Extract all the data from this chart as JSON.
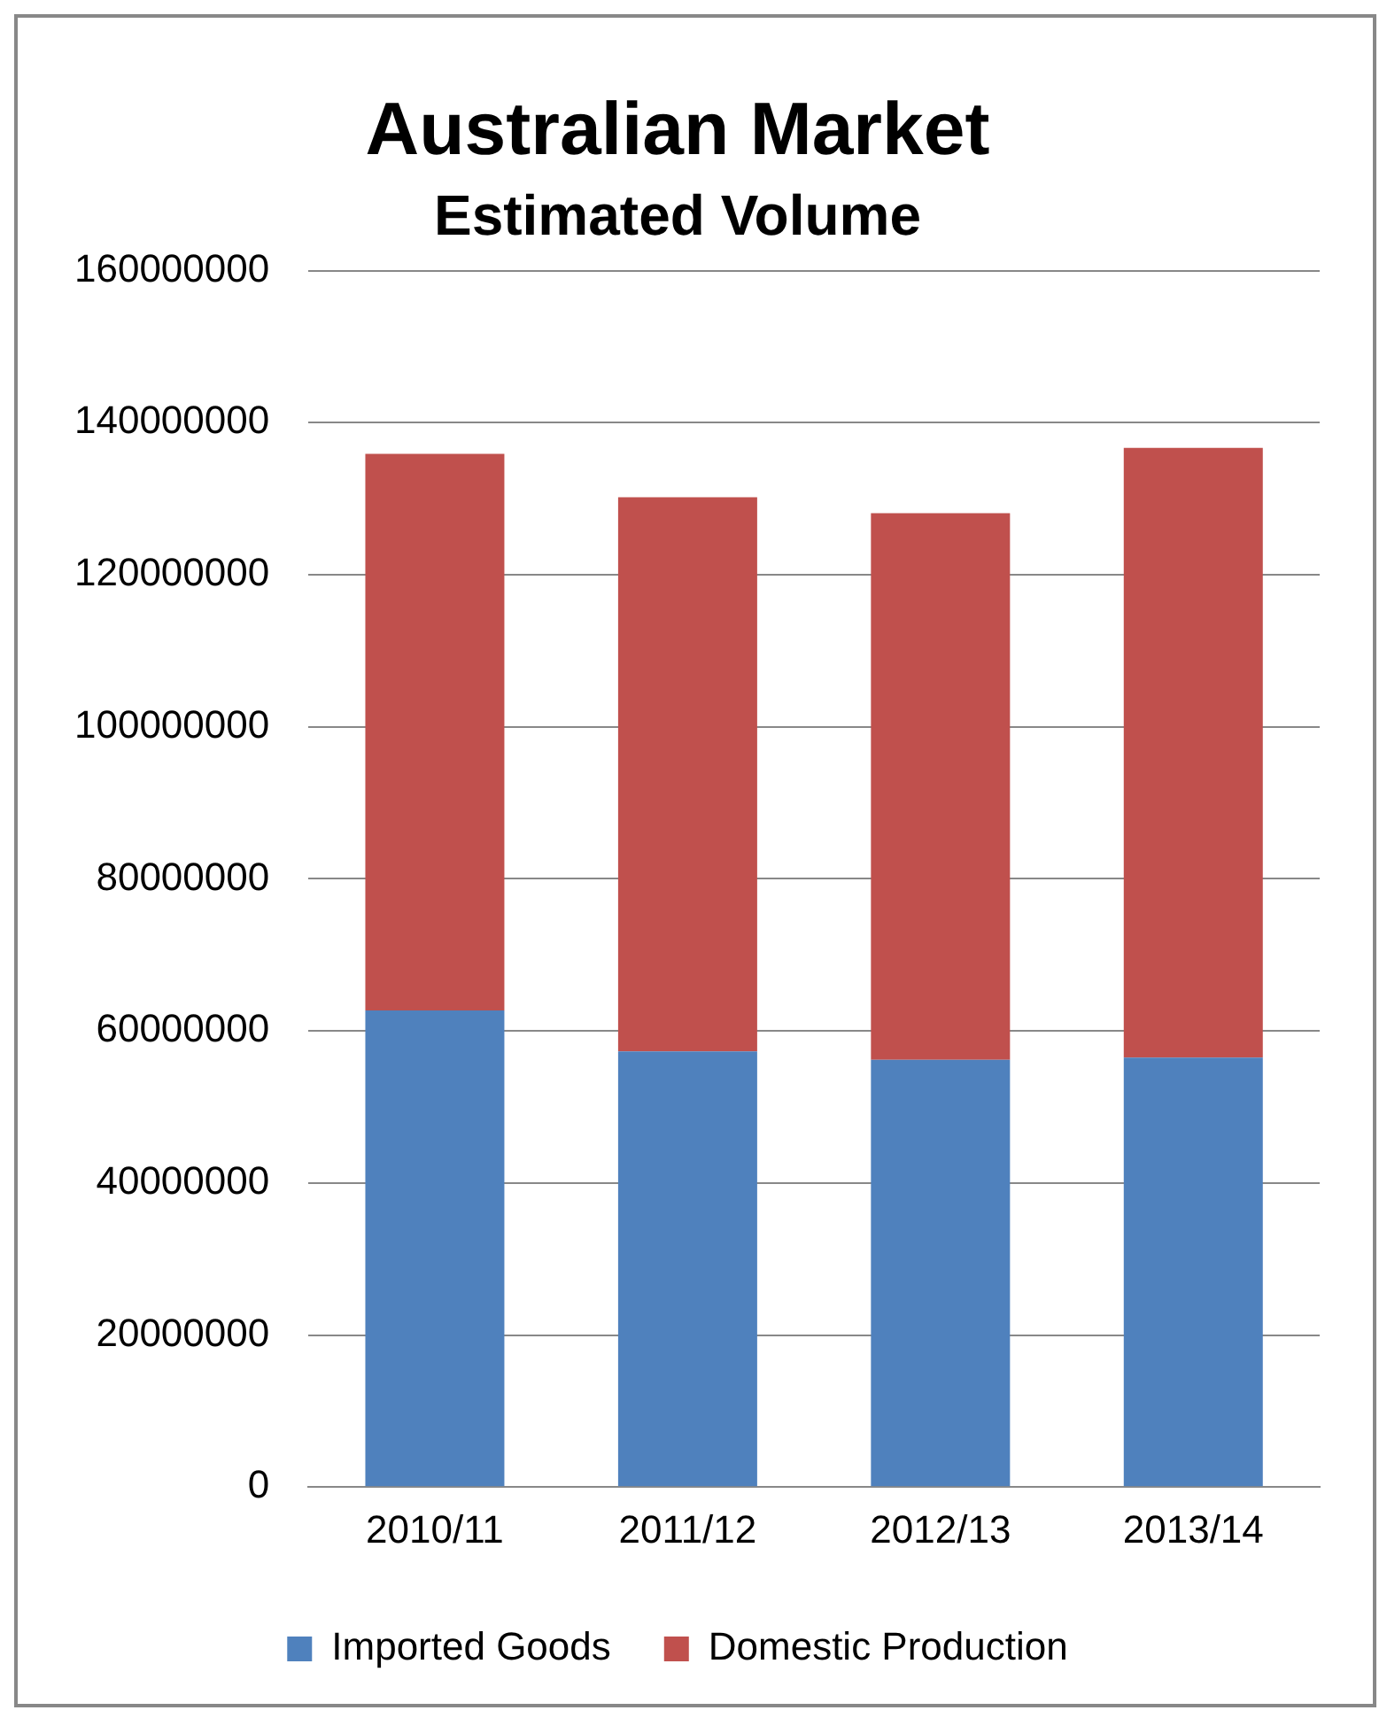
{
  "chart_data": {
    "type": "bar",
    "title": "Australian Market",
    "subtitle": "Estimated Volume",
    "categories": [
      "2010/11",
      "2011/12",
      "2012/13",
      "2013/14"
    ],
    "stacked": true,
    "series": [
      {
        "name": "Imported Goods",
        "color": "#4f81bd",
        "values": [
          62700000,
          57300000,
          56200000,
          56500000
        ]
      },
      {
        "name": "Domestic Production",
        "color": "#c0504d",
        "values": [
          73200000,
          72900000,
          71900000,
          80200000
        ]
      }
    ],
    "ylim": [
      0,
      160000000
    ],
    "yticks": [
      0,
      20000000,
      40000000,
      60000000,
      80000000,
      100000000,
      120000000,
      140000000,
      160000000
    ],
    "grid": "y",
    "legend": "bottom"
  }
}
